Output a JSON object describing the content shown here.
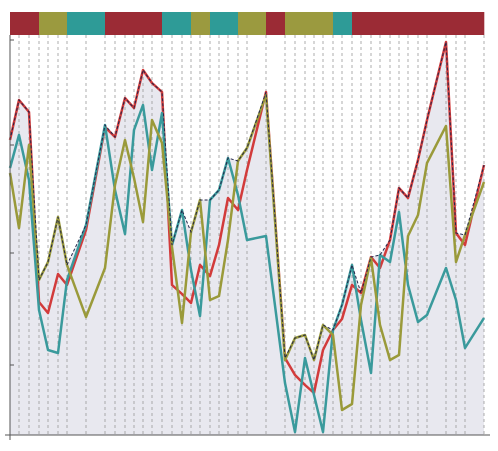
{
  "chart_data": {
    "type": "line",
    "x": [
      10,
      19,
      29,
      39,
      48,
      58,
      67,
      86,
      105,
      115,
      125,
      134,
      143,
      152,
      162,
      172,
      182,
      191,
      200,
      210,
      219,
      228,
      238,
      247,
      266,
      285,
      295,
      305,
      314,
      323,
      333,
      342,
      352,
      361,
      371,
      380,
      390,
      399,
      408,
      418,
      427,
      446,
      456,
      465,
      484
    ],
    "series": [
      {
        "color": "#d23b3b",
        "values": [
          295,
          335,
          323,
          133,
          122,
          161,
          150,
          205,
          308,
          298,
          337,
          327,
          365,
          352,
          343,
          150,
          141,
          132,
          170,
          159,
          190,
          237,
          225,
          265,
          343,
          77,
          60,
          50,
          42,
          85,
          105,
          116,
          150,
          142,
          178,
          167,
          195,
          247,
          237,
          275,
          315,
          393,
          202,
          190,
          270
        ]
      },
      {
        "color": "#3a9a9c",
        "values": [
          267,
          300,
          255,
          125,
          85,
          82,
          155,
          210,
          310,
          245,
          201,
          305,
          330,
          265,
          322,
          190,
          225,
          165,
          119,
          235,
          245,
          277,
          240,
          195,
          199,
          52,
          3,
          77,
          40,
          3,
          105,
          130,
          170,
          115,
          62,
          180,
          173,
          223,
          150,
          113,
          120,
          167,
          135,
          87,
          117
        ]
      },
      {
        "color": "#9a9a3a",
        "values": [
          262,
          207,
          290,
          155,
          173,
          218,
          170,
          118,
          167,
          250,
          295,
          257,
          213,
          315,
          292,
          188,
          112,
          203,
          235,
          135,
          139,
          195,
          274,
          287,
          340,
          75,
          97,
          100,
          75,
          110,
          100,
          25,
          31,
          130,
          177,
          110,
          75,
          80,
          199,
          220,
          272,
          309,
          173,
          200,
          253
        ]
      }
    ],
    "strip_colors": [
      "#9b2b35",
      "#2e9b97",
      "#9b9a3f"
    ],
    "envelope_color": "#23264a",
    "area_color": "#e8e8ef",
    "xlim": [
      10,
      490
    ],
    "ylim": [
      0,
      400
    ],
    "yticks": [
      395,
      290,
      182,
      70
    ]
  }
}
